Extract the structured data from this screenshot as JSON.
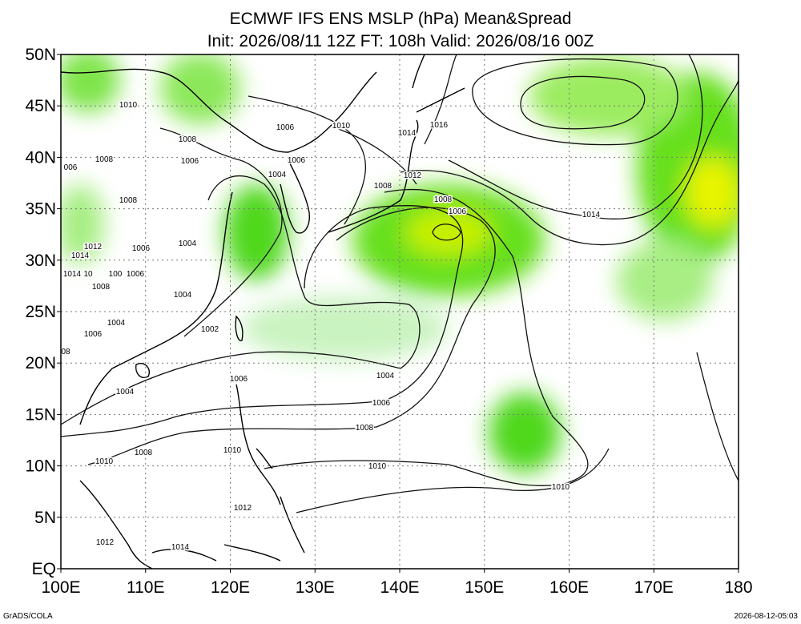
{
  "title": "ECMWF IFS ENS MSLP (hPa) Mean&Spread",
  "subtitle": "Init: 2026/08/11 12Z  FT: 108h  Valid: 2026/08/16 00Z",
  "lat_labels": [
    "50N",
    "45N",
    "40N",
    "35N",
    "30N",
    "25N",
    "20N",
    "15N",
    "10N",
    "5N",
    "EQ"
  ],
  "lon_labels": [
    "100E",
    "110E",
    "120E",
    "130E",
    "140E",
    "150E",
    "160E",
    "170E",
    "180"
  ],
  "contour_labels": [
    "1010",
    "1006",
    "1010",
    "1016",
    "1014",
    "1008",
    "006",
    "1008",
    "1006",
    "1006",
    "1004",
    "1012",
    "1008",
    "1008",
    "1006",
    "1014",
    "1008",
    "1004",
    "1012",
    "1006",
    "1014",
    "1014",
    "10",
    "1006",
    "1008",
    "100",
    "1004",
    "1004",
    "1006",
    "1002",
    "08",
    "1004",
    "1006",
    "1004",
    "1006",
    "1008",
    "1010",
    "1008",
    "1010",
    "1010",
    "1010",
    "1012",
    "1012",
    "1014"
  ],
  "footer_left": "GrADS/COLA",
  "footer_right": "2026-08-12-05:03"
}
